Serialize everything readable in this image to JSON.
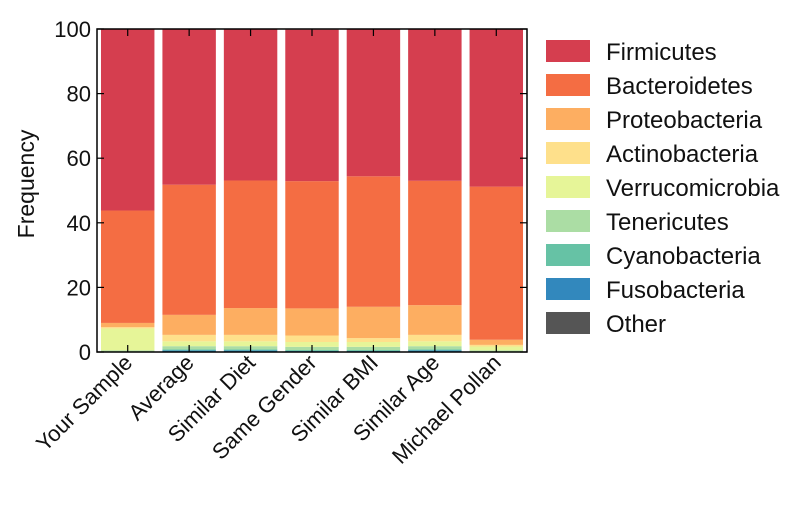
{
  "chart_data": {
    "type": "bar",
    "stacked": true,
    "title": "",
    "xlabel": "",
    "ylabel": "Frequency",
    "ylim": [
      0,
      100
    ],
    "yticks": [
      0,
      20,
      40,
      60,
      80,
      100
    ],
    "grid": false,
    "legend_position": "right",
    "categories": [
      "Your Sample",
      "Average",
      "Similar Diet",
      "Same Gender",
      "Similar BMI",
      "Similar Age",
      "Michael Pollan"
    ],
    "series": [
      {
        "name": "Other",
        "color": "#555555",
        "values": [
          0,
          0,
          0,
          0,
          0,
          0,
          0
        ]
      },
      {
        "name": "Fusobacteria",
        "color": "#3288bd",
        "values": [
          0,
          0.5,
          0.5,
          0.3,
          0.3,
          0.5,
          0
        ]
      },
      {
        "name": "Cyanobacteria",
        "color": "#66c2a5",
        "values": [
          0,
          0.3,
          0.3,
          0.3,
          0.3,
          0.3,
          0
        ]
      },
      {
        "name": "Tenericutes",
        "color": "#abdda4",
        "values": [
          0.5,
          1.0,
          1.0,
          1.0,
          1.0,
          1.0,
          0.5
        ]
      },
      {
        "name": "Verrucomicrobia",
        "color": "#e6f598",
        "values": [
          6.8,
          1.5,
          1.5,
          1.5,
          1.5,
          1.5,
          1.2
        ]
      },
      {
        "name": "Actinobacteria",
        "color": "#fee08b",
        "values": [
          0.4,
          2.0,
          2.0,
          2.0,
          1.2,
          2.0,
          0.5
        ]
      },
      {
        "name": "Proteobacteria",
        "color": "#fdae61",
        "values": [
          1.3,
          6.2,
          8.3,
          8.4,
          9.7,
          9.2,
          1.6
        ]
      },
      {
        "name": "Bacteroidetes",
        "color": "#f46d43",
        "values": [
          34.8,
          40.3,
          39.5,
          39.4,
          40.4,
          38.5,
          47.4
        ]
      },
      {
        "name": "Firmicutes",
        "color": "#d53e4f",
        "values": [
          56.2,
          48.2,
          46.9,
          46.9,
          45.6,
          47.0,
          48.8
        ]
      }
    ],
    "legend_order": [
      "Firmicutes",
      "Bacteroidetes",
      "Proteobacteria",
      "Actinobacteria",
      "Verrucomicrobia",
      "Tenericutes",
      "Cyanobacteria",
      "Fusobacteria",
      "Other"
    ]
  }
}
